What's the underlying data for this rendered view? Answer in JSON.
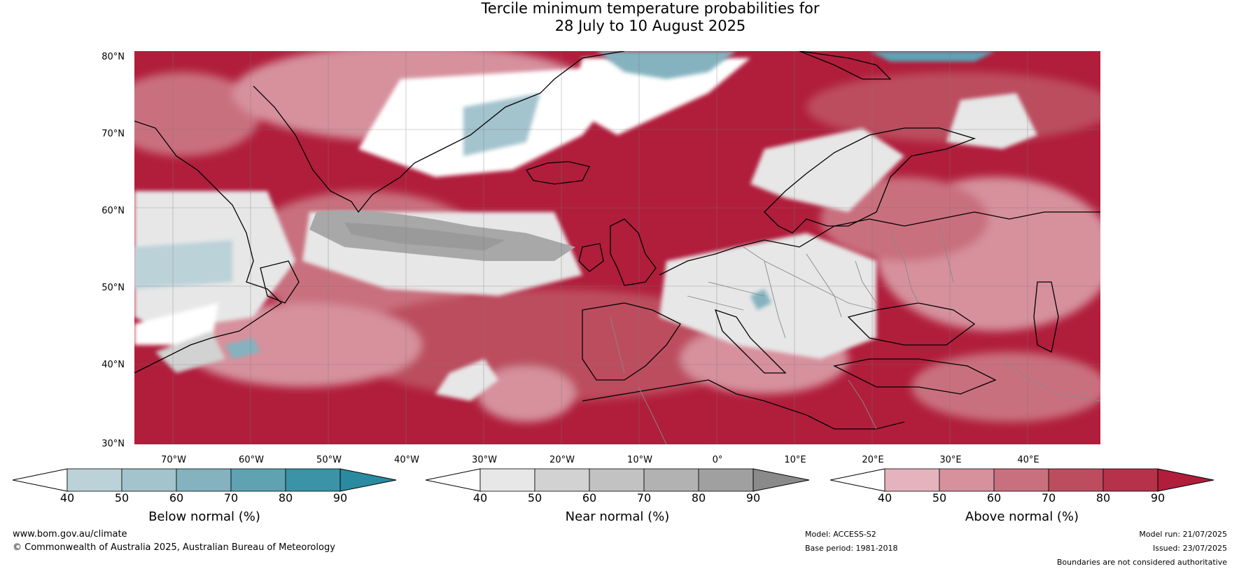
{
  "title": {
    "line1": "Tercile minimum temperature probabilities for",
    "line2": "28 July to 10 August 2025"
  },
  "map": {
    "lat_labels": [
      "80°N",
      "70°N",
      "60°N",
      "50°N",
      "40°N",
      "30°N"
    ],
    "lon_labels": [
      "70°W",
      "60°W",
      "50°W",
      "40°W",
      "30°W",
      "20°W",
      "10°W",
      "0°",
      "10°E",
      "20°E",
      "30°E",
      "40°E"
    ],
    "colors": {
      "above": [
        "#e4b3bd",
        "#d6919d",
        "#c9707e",
        "#bc4d5f",
        "#b01e3c"
      ],
      "near": [
        "#e7e7e7",
        "#d2d2d2",
        "#bdbdbd",
        "#a8a8a8",
        "#959595"
      ],
      "below": [
        "#bcd2d9",
        "#a3c3cd",
        "#84b2bf",
        "#5fa2b2",
        "#3a93a6"
      ],
      "coast": "#000000",
      "border": "#888888"
    }
  },
  "colorbars": [
    {
      "key": "below",
      "title": "Below normal (%)",
      "ticks": [
        "40",
        "50",
        "60",
        "70",
        "80",
        "90"
      ],
      "colors": [
        "#ffffff",
        "#bcd2d9",
        "#a3c3cd",
        "#84b2bf",
        "#5fa2b2",
        "#3a93a6",
        "#2a8ba0"
      ]
    },
    {
      "key": "near",
      "title": "Near normal (%)",
      "ticks": [
        "40",
        "50",
        "60",
        "70",
        "80",
        "90"
      ],
      "colors": [
        "#ffffff",
        "#e7e7e7",
        "#d2d2d2",
        "#c2c2c2",
        "#b2b2b2",
        "#a0a0a0",
        "#8a8a8a"
      ]
    },
    {
      "key": "above",
      "title": "Above normal (%)",
      "ticks": [
        "40",
        "50",
        "60",
        "70",
        "80",
        "90"
      ],
      "colors": [
        "#ffffff",
        "#e4b3bd",
        "#d6919d",
        "#c9707e",
        "#bc4d5f",
        "#b5324a",
        "#b01e3c"
      ]
    }
  ],
  "footer": {
    "website": "www.bom.gov.au/climate",
    "copyright": "© Commonwealth of Australia 2025, Australian Bureau of Meteorology",
    "model": "Model: ACCESS-S2",
    "base_period": "Base period: 1981-2018",
    "model_run": "Model run: 21/07/2025",
    "issued": "Issued: 23/07/2025",
    "disclaimer": "Boundaries are not considered authoritative"
  }
}
